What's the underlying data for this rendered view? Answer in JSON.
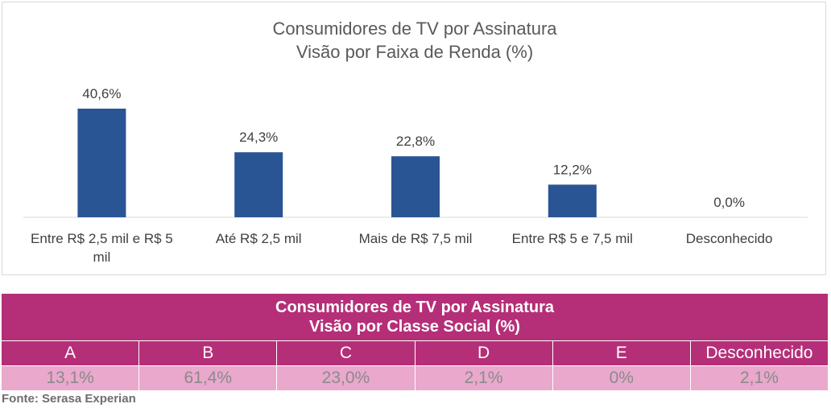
{
  "chart_data": {
    "type": "bar",
    "title": "Consumidores de TV por Assinatura",
    "subtitle": "Visão por Faixa de Renda (%)",
    "categories": [
      "Entre R$ 2,5 mil e R$ 5 mil",
      "Até R$ 2,5 mil",
      "Mais de R$ 7,5 mil",
      "Entre R$ 5 e 7,5 mil",
      "Desconhecido"
    ],
    "values": [
      40.6,
      24.3,
      22.8,
      12.2,
      0.0
    ],
    "data_labels": [
      "40,6%",
      "24,3%",
      "22,8%",
      "12,2%",
      "0,0%"
    ],
    "bar_color": "#2a5594",
    "ylim": [
      0,
      45
    ],
    "grid": false,
    "legend": "none"
  },
  "table": {
    "title_line1": "Consumidores de TV por Assinatura",
    "title_line2": "Visão por Classe Social (%)",
    "headers": [
      "A",
      "B",
      "C",
      "D",
      "E",
      "Desconhecido"
    ],
    "values": [
      "13,1%",
      "61,4%",
      "23,0%",
      "2,1%",
      "0%",
      "2,1%"
    ],
    "header_color": "#b52f78",
    "value_row_color": "#e9a8cc"
  },
  "source": "Fonte: Serasa Experian"
}
